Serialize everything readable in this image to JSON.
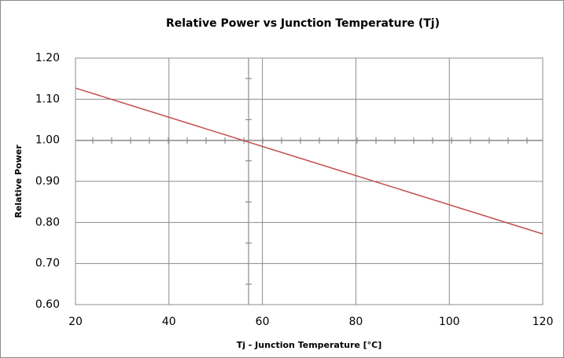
{
  "chart_data": {
    "type": "line",
    "title": "Relative Power vs Junction Temperature (Tj)",
    "x_label": "Tj - Junction Temperature [°C]",
    "y_label": "Relative Power",
    "x": [
      20,
      120
    ],
    "series": [
      {
        "name": "Relative Power",
        "color": "#c0504d",
        "values": [
          1.127,
          0.772
        ]
      }
    ],
    "xlim": [
      20,
      120
    ],
    "xticks": [
      20,
      40,
      60,
      80,
      100,
      120
    ],
    "ylim": [
      0.6,
      1.2
    ],
    "yticks": [
      {
        "value": 0.6,
        "label": "0.60"
      },
      {
        "value": 0.7,
        "label": "0.70"
      },
      {
        "value": 0.8,
        "label": "0.80"
      },
      {
        "value": 0.9,
        "label": "0.90"
      },
      {
        "value": 1.0,
        "label": "1.00"
      },
      {
        "value": 1.1,
        "label": "1.10"
      },
      {
        "value": 1.2,
        "label": "1.20"
      }
    ],
    "grid": true
  }
}
